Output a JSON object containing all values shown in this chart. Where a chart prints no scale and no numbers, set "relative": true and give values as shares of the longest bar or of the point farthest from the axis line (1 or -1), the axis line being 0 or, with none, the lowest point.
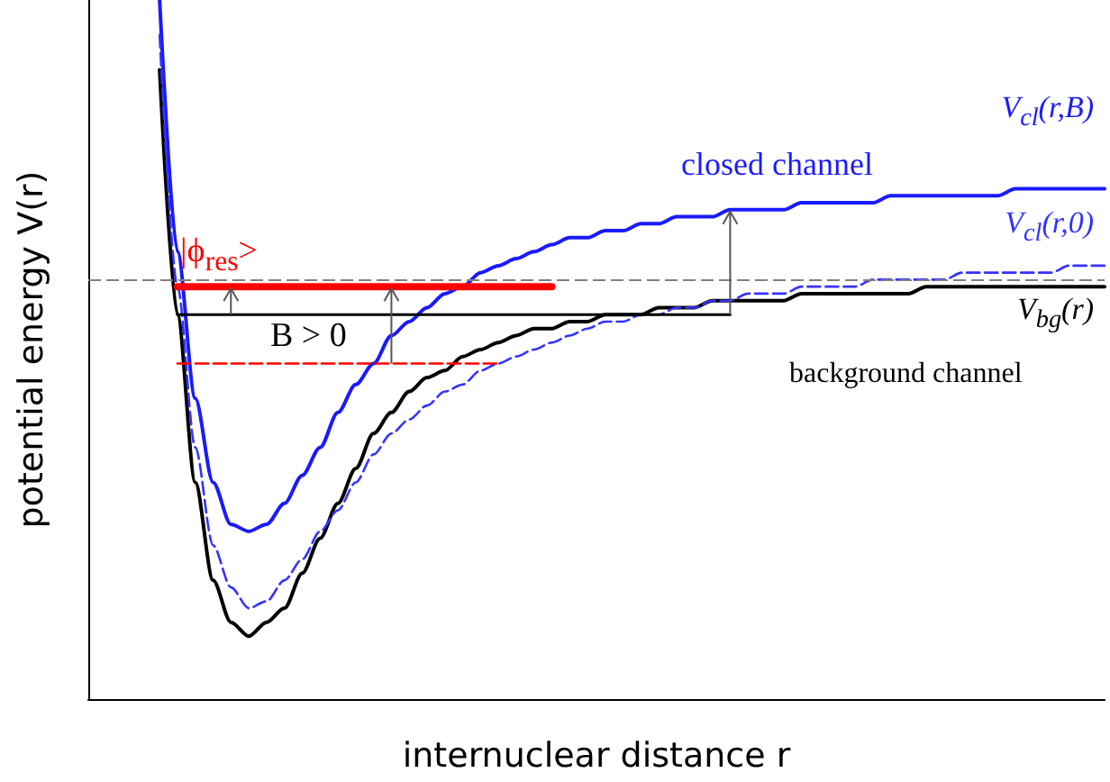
{
  "chart_data": {
    "type": "line",
    "relative": true,
    "xlabel": "internuclear distance r",
    "ylabel": "potential energy V(r)",
    "legend": false,
    "grid": false,
    "marker": "none",
    "categories": [
      null,
      null,
      null,
      null,
      null,
      null,
      null,
      null,
      null,
      null,
      null,
      null,
      null,
      null,
      null,
      null,
      null,
      null,
      null,
      null,
      null,
      null,
      null,
      null,
      null,
      null,
      null,
      null,
      null,
      null,
      null,
      null,
      null,
      null,
      null,
      null,
      null,
      null,
      null,
      null,
      null,
      null,
      null,
      null,
      null,
      null,
      null,
      null,
      null,
      null,
      null,
      null,
      null,
      null,
      null,
      null,
      null,
      null
    ],
    "series": [
      {
        "name": "V$_{bg}$(r)",
        "color": "#000000",
        "line_style": "solid",
        "values": [
          null,
          null,
          null,
          null,
          0.9,
          0.55,
          0.31,
          0.17,
          0.11,
          0.09,
          0.11,
          0.13,
          0.18,
          0.23,
          0.28,
          0.33,
          0.38,
          0.41,
          0.44,
          0.46,
          0.47,
          0.49,
          0.5,
          0.51,
          0.52,
          0.53,
          0.53,
          0.54,
          0.54,
          0.55,
          0.55,
          0.55,
          0.56,
          0.56,
          0.56,
          0.57,
          0.57,
          0.57,
          0.57,
          0.57,
          0.58,
          0.58,
          0.58,
          0.58,
          0.58,
          0.58,
          0.58,
          0.59,
          0.59,
          0.59,
          0.59,
          0.59,
          0.59,
          0.59,
          0.59,
          0.59,
          0.59,
          0.59
        ]
      },
      {
        "name": "V$_{cl}$(r,B)",
        "color": "#1a1aff",
        "line_style": "solid",
        "values": [
          null,
          null,
          null,
          null,
          1.0,
          0.64,
          0.43,
          0.31,
          0.25,
          0.24,
          0.25,
          0.28,
          0.32,
          0.36,
          0.41,
          0.45,
          0.48,
          0.52,
          0.54,
          0.56,
          0.58,
          0.59,
          0.61,
          0.62,
          0.63,
          0.64,
          0.65,
          0.66,
          0.66,
          0.67,
          0.67,
          0.68,
          0.68,
          0.69,
          0.69,
          0.69,
          0.7,
          0.7,
          0.7,
          0.7,
          0.71,
          0.71,
          0.71,
          0.71,
          0.71,
          0.72,
          0.72,
          0.72,
          0.72,
          0.72,
          0.72,
          0.72,
          0.73,
          0.73,
          0.73,
          0.73,
          0.73,
          0.73
        ]
      },
      {
        "name": "V$_{cl}$(r,0)",
        "color": "#3333ff",
        "line_style": "dashed",
        "values": [
          null,
          null,
          null,
          null,
          0.95,
          0.59,
          0.36,
          0.22,
          0.16,
          0.13,
          0.14,
          0.17,
          0.2,
          0.24,
          0.27,
          0.31,
          0.35,
          0.38,
          0.4,
          0.42,
          0.44,
          0.45,
          0.47,
          0.48,
          0.49,
          0.5,
          0.51,
          0.52,
          0.53,
          0.54,
          0.54,
          0.55,
          0.55,
          0.56,
          0.56,
          0.57,
          0.57,
          0.58,
          0.58,
          0.58,
          0.59,
          0.59,
          0.59,
          0.59,
          0.6,
          0.6,
          0.6,
          0.6,
          0.6,
          0.61,
          0.61,
          0.61,
          0.61,
          0.61,
          0.61,
          0.62,
          0.62,
          0.62
        ]
      },
      {
        "color": "#ff0000",
        "line_style": "solid",
        "values": [
          null,
          null,
          null,
          null,
          null,
          0.59,
          0.59,
          0.59,
          0.59,
          0.59,
          0.59,
          0.59,
          0.59,
          0.59,
          0.59,
          0.59,
          0.59,
          0.59,
          0.59,
          0.59,
          0.59,
          0.59,
          0.59,
          0.59,
          0.59,
          0.59,
          0.59,
          null,
          null,
          null,
          null,
          null,
          null,
          null,
          null,
          null,
          null,
          null,
          null,
          null,
          null,
          null,
          null,
          null,
          null,
          null,
          null,
          null,
          null,
          null,
          null,
          null,
          null,
          null,
          null,
          null,
          null,
          null
        ]
      },
      {
        "color": "#000000",
        "line_style": "solid",
        "values": [
          null,
          null,
          null,
          null,
          null,
          0.55,
          0.55,
          0.55,
          0.55,
          0.55,
          0.55,
          0.55,
          0.55,
          0.55,
          0.55,
          0.55,
          0.55,
          0.55,
          0.55,
          0.55,
          0.55,
          0.55,
          0.55,
          0.55,
          0.55,
          0.55,
          0.55,
          0.55,
          0.55,
          0.55,
          0.55,
          0.55,
          0.55,
          0.55,
          0.55,
          0.55,
          0.55,
          null,
          null,
          null,
          null,
          null,
          null,
          null,
          null,
          null,
          null,
          null,
          null,
          null,
          null,
          null,
          null,
          null,
          null,
          null,
          null,
          null
        ]
      },
      {
        "color": "#ff0000",
        "line_style": "dashed",
        "values": [
          null,
          null,
          null,
          null,
          null,
          0.48,
          0.48,
          0.48,
          0.48,
          0.48,
          0.48,
          0.48,
          0.48,
          0.48,
          0.48,
          0.48,
          0.48,
          0.48,
          0.48,
          0.48,
          0.48,
          0.48,
          0.48,
          0.48,
          null,
          null,
          null,
          null,
          null,
          null,
          null,
          null,
          null,
          null,
          null,
          null,
          null,
          null,
          null,
          null,
          null,
          null,
          null,
          null,
          null,
          null,
          null,
          null,
          null,
          null,
          null,
          null,
          null,
          null,
          null,
          null,
          null,
          null
        ]
      }
    ],
    "ref_lines": [
      {
        "axis": "y",
        "value": 0.6,
        "color": "#808080",
        "line_style": "dashed"
      }
    ],
    "annotations": [
      "closed channel",
      "background channel",
      "B > 0",
      "|ϕ$_{res}$>"
    ]
  }
}
